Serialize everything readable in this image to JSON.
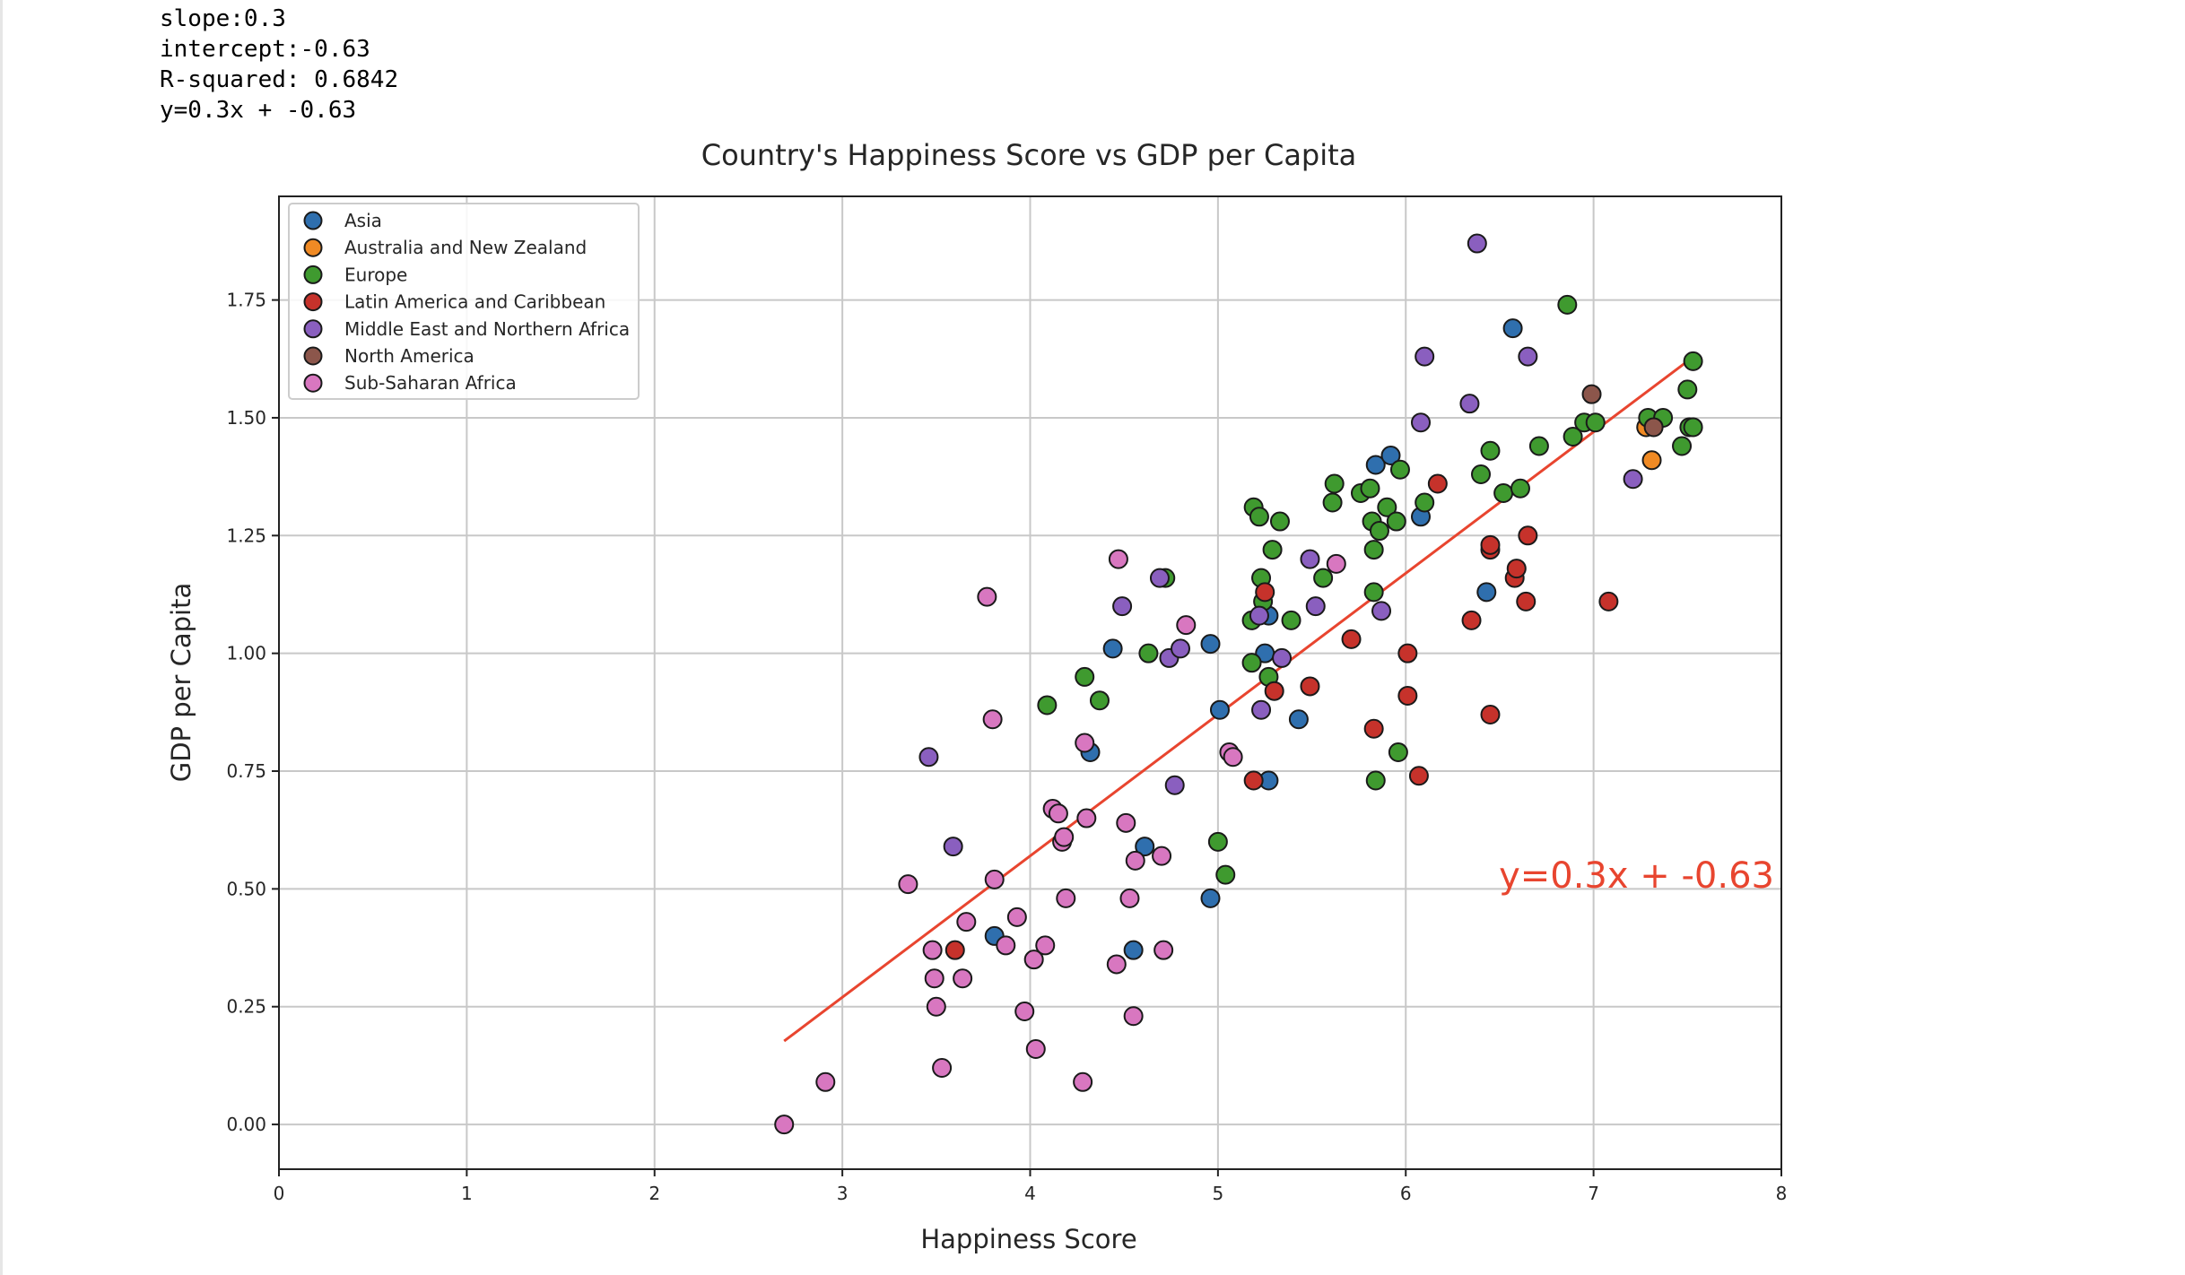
{
  "output_lines": [
    "slope:0.3",
    "intercept:-0.63",
    "R-squared: 0.6842",
    "y=0.3x + -0.63"
  ],
  "chart_data": {
    "type": "scatter",
    "title": "Country's Happiness Score vs GDP per Capita",
    "xlabel": "Happiness Score",
    "ylabel": "GDP per Capita",
    "xlim": [
      0,
      8
    ],
    "ylim": [
      -0.095,
      1.97
    ],
    "xticks": [
      "0",
      "1",
      "2",
      "3",
      "4",
      "5",
      "6",
      "7",
      "8"
    ],
    "yticks": [
      "0.00",
      "0.25",
      "0.50",
      "0.75",
      "1.00",
      "1.25",
      "1.50",
      "1.75"
    ],
    "grid": true,
    "legend_position": "upper-left",
    "regression": {
      "slope": 0.3,
      "intercept": -0.63,
      "x_range": [
        2.69,
        7.53
      ],
      "label": "y=0.3x + -0.63",
      "color": "#e8452f"
    },
    "series": [
      {
        "name": "Asia",
        "color": "#2f6fae",
        "points": [
          [
            3.81,
            0.4
          ],
          [
            4.32,
            0.79
          ],
          [
            4.44,
            1.01
          ],
          [
            4.55,
            0.37
          ],
          [
            4.61,
            0.59
          ],
          [
            4.96,
            1.02
          ],
          [
            4.96,
            0.48
          ],
          [
            5.01,
            0.88
          ],
          [
            5.25,
            1.0
          ],
          [
            5.27,
            1.08
          ],
          [
            5.27,
            0.73
          ],
          [
            5.43,
            0.86
          ],
          [
            5.84,
            1.4
          ],
          [
            5.92,
            1.42
          ],
          [
            6.08,
            1.29
          ],
          [
            6.43,
            1.13
          ],
          [
            6.57,
            1.69
          ]
        ]
      },
      {
        "name": "Australia and New Zealand",
        "color": "#f08a24",
        "points": [
          [
            7.28,
            1.48
          ],
          [
            7.31,
            1.41
          ]
        ]
      },
      {
        "name": "Europe",
        "color": "#3f9a2f",
        "points": [
          [
            4.09,
            0.89
          ],
          [
            4.29,
            0.95
          ],
          [
            4.37,
            0.9
          ],
          [
            4.63,
            1.0
          ],
          [
            4.72,
            1.16
          ],
          [
            5.0,
            0.6
          ],
          [
            5.04,
            0.53
          ],
          [
            5.18,
            0.98
          ],
          [
            5.18,
            1.07
          ],
          [
            5.19,
            1.31
          ],
          [
            5.22,
            1.29
          ],
          [
            5.23,
            1.16
          ],
          [
            5.24,
            1.11
          ],
          [
            5.27,
            0.95
          ],
          [
            5.29,
            1.22
          ],
          [
            5.33,
            1.28
          ],
          [
            5.39,
            1.07
          ],
          [
            5.56,
            1.16
          ],
          [
            5.61,
            1.32
          ],
          [
            5.62,
            1.36
          ],
          [
            5.76,
            1.34
          ],
          [
            5.81,
            1.35
          ],
          [
            5.82,
            1.28
          ],
          [
            5.83,
            1.22
          ],
          [
            5.83,
            1.13
          ],
          [
            5.84,
            0.73
          ],
          [
            5.86,
            1.26
          ],
          [
            5.9,
            1.31
          ],
          [
            5.95,
            1.28
          ],
          [
            5.96,
            0.79
          ],
          [
            5.97,
            1.39
          ],
          [
            6.1,
            1.32
          ],
          [
            6.4,
            1.38
          ],
          [
            6.45,
            1.43
          ],
          [
            6.52,
            1.34
          ],
          [
            6.61,
            1.35
          ],
          [
            6.71,
            1.44
          ],
          [
            6.86,
            1.74
          ],
          [
            6.89,
            1.46
          ],
          [
            6.95,
            1.49
          ],
          [
            7.01,
            1.49
          ],
          [
            7.29,
            1.5
          ],
          [
            7.37,
            1.5
          ],
          [
            7.47,
            1.44
          ],
          [
            7.5,
            1.56
          ],
          [
            7.51,
            1.48
          ],
          [
            7.53,
            1.62
          ],
          [
            7.53,
            1.48
          ]
        ]
      },
      {
        "name": "Latin America and Caribbean",
        "color": "#c6322b",
        "points": [
          [
            3.6,
            0.37
          ],
          [
            5.19,
            0.73
          ],
          [
            5.25,
            1.13
          ],
          [
            5.3,
            0.92
          ],
          [
            5.49,
            0.93
          ],
          [
            5.71,
            1.03
          ],
          [
            5.83,
            0.84
          ],
          [
            6.01,
            0.91
          ],
          [
            6.01,
            1.0
          ],
          [
            6.07,
            0.74
          ],
          [
            6.17,
            1.36
          ],
          [
            6.35,
            1.07
          ],
          [
            6.45,
            0.87
          ],
          [
            6.45,
            1.22
          ],
          [
            6.45,
            1.23
          ],
          [
            6.58,
            1.16
          ],
          [
            6.59,
            1.18
          ],
          [
            6.64,
            1.11
          ],
          [
            6.65,
            1.25
          ],
          [
            7.08,
            1.11
          ]
        ]
      },
      {
        "name": "Middle East and Northern Africa",
        "color": "#8a5fbf",
        "points": [
          [
            3.46,
            0.78
          ],
          [
            3.59,
            0.59
          ],
          [
            4.49,
            1.1
          ],
          [
            4.69,
            1.16
          ],
          [
            4.74,
            0.99
          ],
          [
            4.77,
            0.72
          ],
          [
            4.8,
            1.01
          ],
          [
            5.22,
            1.08
          ],
          [
            5.23,
            0.88
          ],
          [
            5.34,
            0.99
          ],
          [
            5.49,
            1.2
          ],
          [
            5.52,
            1.1
          ],
          [
            5.87,
            1.09
          ],
          [
            6.08,
            1.49
          ],
          [
            6.1,
            1.63
          ],
          [
            6.34,
            1.53
          ],
          [
            6.38,
            1.87
          ],
          [
            6.65,
            1.63
          ],
          [
            7.21,
            1.37
          ]
        ]
      },
      {
        "name": "North America",
        "color": "#8c564b",
        "points": [
          [
            6.99,
            1.55
          ],
          [
            7.32,
            1.48
          ]
        ]
      },
      {
        "name": "Sub-Saharan Africa",
        "color": "#d877c0",
        "points": [
          [
            2.69,
            0.0
          ],
          [
            2.91,
            0.09
          ],
          [
            3.35,
            0.51
          ],
          [
            3.48,
            0.37
          ],
          [
            3.49,
            0.31
          ],
          [
            3.5,
            0.25
          ],
          [
            3.53,
            0.12
          ],
          [
            3.64,
            0.31
          ],
          [
            3.66,
            0.43
          ],
          [
            3.77,
            1.12
          ],
          [
            3.8,
            0.86
          ],
          [
            3.81,
            0.52
          ],
          [
            3.87,
            0.38
          ],
          [
            3.93,
            0.44
          ],
          [
            3.97,
            0.24
          ],
          [
            4.02,
            0.35
          ],
          [
            4.03,
            0.16
          ],
          [
            4.08,
            0.38
          ],
          [
            4.12,
            0.67
          ],
          [
            4.15,
            0.66
          ],
          [
            4.17,
            0.6
          ],
          [
            4.18,
            0.61
          ],
          [
            4.19,
            0.48
          ],
          [
            4.28,
            0.09
          ],
          [
            4.29,
            0.81
          ],
          [
            4.3,
            0.65
          ],
          [
            4.46,
            0.34
          ],
          [
            4.47,
            1.2
          ],
          [
            4.51,
            0.64
          ],
          [
            4.53,
            0.48
          ],
          [
            4.55,
            0.23
          ],
          [
            4.56,
            0.56
          ],
          [
            4.7,
            0.57
          ],
          [
            4.71,
            0.37
          ],
          [
            4.83,
            1.06
          ],
          [
            5.06,
            0.79
          ],
          [
            5.08,
            0.78
          ],
          [
            5.63,
            1.19
          ]
        ]
      }
    ]
  }
}
